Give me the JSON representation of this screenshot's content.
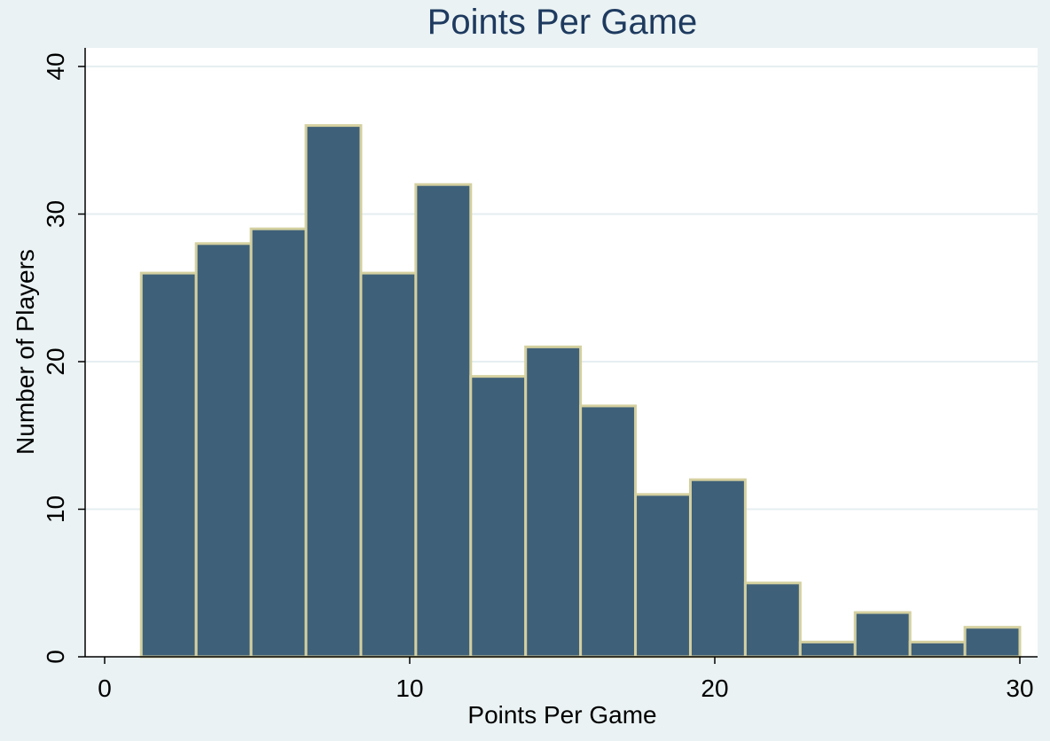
{
  "chart_data": {
    "type": "bar",
    "title": "Points Per Game",
    "xlabel": "Points Per Game",
    "ylabel": "Number of Players",
    "xlim": [
      0,
      30
    ],
    "ylim": [
      0,
      40
    ],
    "xticks": [
      "0",
      "10",
      "20",
      "30"
    ],
    "yticks": [
      "0",
      "10",
      "20",
      "30",
      "40"
    ],
    "grid": true,
    "bins": [
      {
        "start": 1.2,
        "end": 3.0,
        "value": 26
      },
      {
        "start": 3.0,
        "end": 4.8,
        "value": 28
      },
      {
        "start": 4.8,
        "end": 6.6,
        "value": 29
      },
      {
        "start": 6.6,
        "end": 8.4,
        "value": 36
      },
      {
        "start": 8.4,
        "end": 10.2,
        "value": 26
      },
      {
        "start": 10.2,
        "end": 12.0,
        "value": 32
      },
      {
        "start": 12.0,
        "end": 13.8,
        "value": 19
      },
      {
        "start": 13.8,
        "end": 15.6,
        "value": 21
      },
      {
        "start": 15.6,
        "end": 17.4,
        "value": 17
      },
      {
        "start": 17.4,
        "end": 19.2,
        "value": 11
      },
      {
        "start": 19.2,
        "end": 21.0,
        "value": 12
      },
      {
        "start": 21.0,
        "end": 22.8,
        "value": 5
      },
      {
        "start": 22.8,
        "end": 24.6,
        "value": 1
      },
      {
        "start": 24.6,
        "end": 26.4,
        "value": 3
      },
      {
        "start": 26.4,
        "end": 28.2,
        "value": 1
      },
      {
        "start": 28.2,
        "end": 30.0,
        "value": 2
      }
    ],
    "colors": {
      "bar_fill": "#3f6079",
      "bar_outline": "#d4d0a0",
      "plot_background": "#ffffff",
      "page_background": "#eaf2f3",
      "grid": "#e6eef0",
      "title": "#1e3a5f"
    }
  }
}
